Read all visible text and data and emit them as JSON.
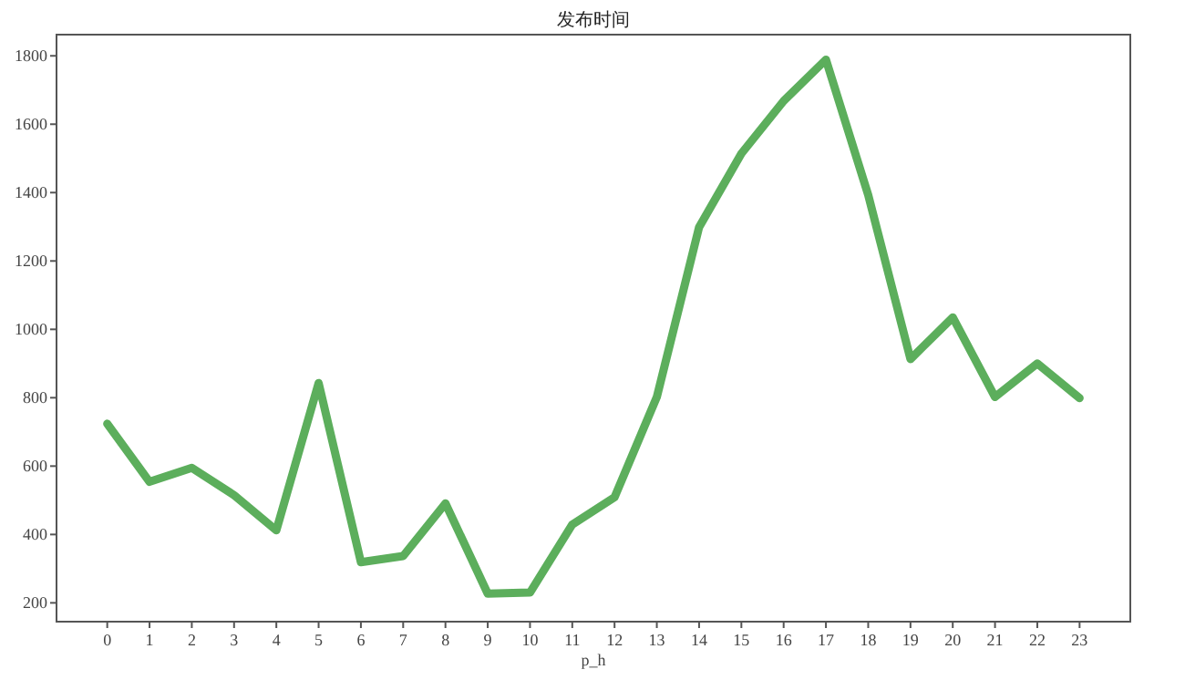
{
  "chart_data": {
    "type": "line",
    "title": "发布时间",
    "xlabel": "p_h",
    "x": [
      0,
      1,
      2,
      3,
      4,
      5,
      6,
      7,
      8,
      9,
      10,
      11,
      12,
      13,
      14,
      15,
      16,
      17,
      18,
      19,
      20,
      21,
      22,
      23
    ],
    "series": [
      {
        "color": "#5cae5c",
        "values": [
          724,
          554,
          595,
          515,
          412,
          843,
          319,
          337,
          491,
          227,
          230,
          429,
          509,
          802,
          1299,
          1514,
          1668,
          1789,
          1393,
          913,
          1035,
          802,
          900,
          799
        ]
      }
    ],
    "xlim": [
      -1.2,
      24.2
    ],
    "ylim": [
      145,
      1862
    ],
    "xticks": [
      0,
      1,
      2,
      3,
      4,
      5,
      6,
      7,
      8,
      9,
      10,
      11,
      12,
      13,
      14,
      15,
      16,
      17,
      18,
      19,
      20,
      21,
      22,
      23
    ],
    "yticks": [
      200,
      400,
      600,
      800,
      1000,
      1200,
      1400,
      1600,
      1800
    ]
  }
}
